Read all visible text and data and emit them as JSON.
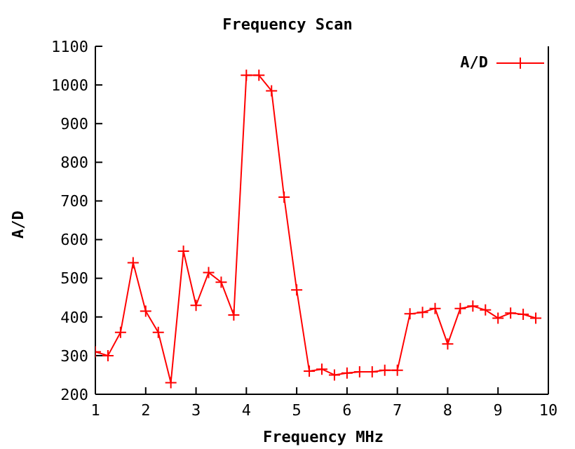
{
  "chart_data": {
    "type": "line",
    "title": "Frequency Scan",
    "xlabel": "Frequency MHz",
    "ylabel": "A/D",
    "x": [
      1,
      1.25,
      1.5,
      1.75,
      2,
      2.25,
      2.5,
      2.75,
      3,
      3.25,
      3.5,
      3.75,
      4,
      4.25,
      4.5,
      4.75,
      5,
      5.25,
      5.5,
      5.75,
      6,
      6.25,
      6.5,
      6.75,
      7,
      7.25,
      7.5,
      7.75,
      8,
      8.25,
      8.5,
      8.75,
      9,
      9.25,
      9.5,
      9.75
    ],
    "series": [
      {
        "name": "A/D",
        "color": "#ff0000",
        "values": [
          310,
          300,
          360,
          540,
          415,
          360,
          230,
          570,
          430,
          515,
          490,
          405,
          1025,
          1025,
          985,
          710,
          470,
          260,
          265,
          250,
          255,
          258,
          258,
          262,
          262,
          408,
          412,
          422,
          330,
          422,
          428,
          418,
          397,
          410,
          407,
          397
        ]
      }
    ],
    "xlim": [
      1,
      10
    ],
    "xticks": [
      1,
      2,
      3,
      4,
      5,
      6,
      7,
      8,
      9,
      10
    ],
    "ylim": [
      200,
      1100
    ],
    "yticks": [
      200,
      300,
      400,
      500,
      600,
      700,
      800,
      900,
      1000,
      1100
    ],
    "grid": false,
    "legend": "top right",
    "marker": "cross",
    "line_style": "solid"
  }
}
